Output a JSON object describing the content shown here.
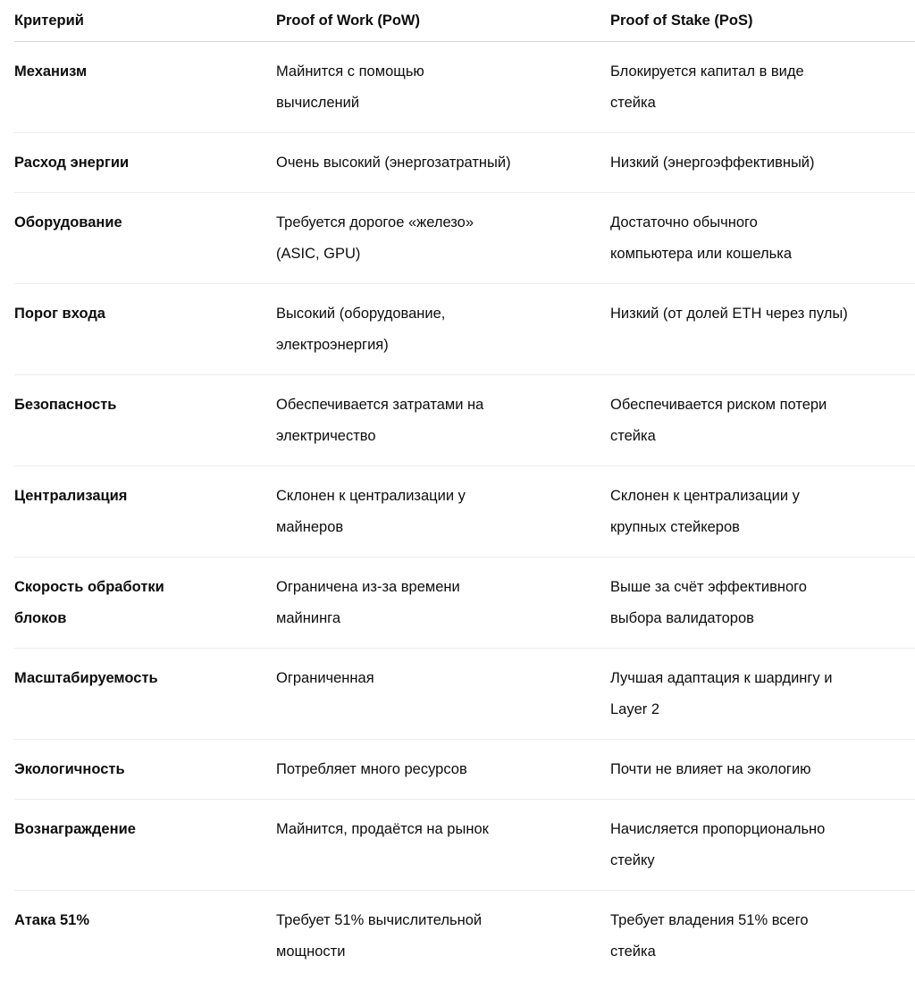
{
  "table": {
    "headers": [
      "Критерий",
      "Proof of Work (PoW)",
      "Proof of Stake (PoS)"
    ],
    "rows": [
      [
        [
          "Механизм"
        ],
        [
          "Майнится с помощью",
          "вычислений"
        ],
        [
          "Блокируется капитал в виде",
          "стейка"
        ]
      ],
      [
        [
          "Расход энергии"
        ],
        [
          "Очень высокий (энергозатратный)"
        ],
        [
          "Низкий (энергоэффективный)"
        ]
      ],
      [
        [
          "Оборудование"
        ],
        [
          "Требуется дорогое «железо»",
          "(ASIC, GPU)"
        ],
        [
          "Достаточно обычного",
          "компьютера или кошелька"
        ]
      ],
      [
        [
          "Порог входа"
        ],
        [
          "Высокий (оборудование,",
          "электроэнергия)"
        ],
        [
          "Низкий (от долей ETH через пулы)"
        ]
      ],
      [
        [
          "Безопасность"
        ],
        [
          "Обеспечивается затратами на",
          "электричество"
        ],
        [
          "Обеспечивается риском потери",
          "стейка"
        ]
      ],
      [
        [
          "Централизация"
        ],
        [
          "Склонен к централизации у",
          "майнеров"
        ],
        [
          "Склонен к централизации у",
          "крупных стейкеров"
        ]
      ],
      [
        [
          "Скорость обработки",
          "блоков"
        ],
        [
          "Ограничена из-за времени",
          "майнинга"
        ],
        [
          "Выше за счёт эффективного",
          "выбора валидаторов"
        ]
      ],
      [
        [
          "Масштабируемость"
        ],
        [
          "Ограниченная"
        ],
        [
          "Лучшая адаптация к шардингу и",
          "Layer 2"
        ]
      ],
      [
        [
          "Экологичность"
        ],
        [
          "Потребляет много ресурсов"
        ],
        [
          "Почти не влияет на экологию"
        ]
      ],
      [
        [
          "Вознаграждение"
        ],
        [
          "Майнится, продаётся на рынок"
        ],
        [
          "Начисляется пропорционально",
          "стейку"
        ]
      ],
      [
        [
          "Атака 51%"
        ],
        [
          "Требует 51% вычислительной",
          "мощности"
        ],
        [
          "Требует владения 51% всего",
          "стейка"
        ]
      ]
    ]
  }
}
